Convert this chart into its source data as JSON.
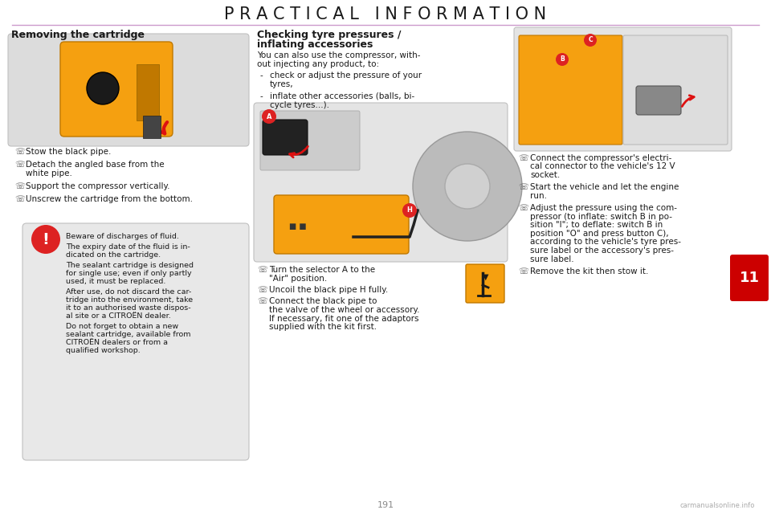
{
  "title": "P R A C T I C A L   I N F O R M A T I O N",
  "title_fontsize": 15,
  "title_color": "#1a1a1a",
  "background_color": "#ffffff",
  "page_number": "11",
  "page_number_color": "#ffffff",
  "page_number_bg": "#cc0000",
  "footer_text": "191",
  "footer_color": "#888888",
  "divider_color": "#cc99cc",
  "left_section_title": "Removing the cartridge",
  "left_bullets": [
    "Stow the black pipe.",
    "Detach the angled base from the\nwhite pipe.",
    "Support the compressor vertically.",
    "Unscrew the cartridge from the bottom."
  ],
  "warning_bg": "#e8e8e8",
  "warning_icon_bg": "#dd2222",
  "warning_texts": [
    "Beware of discharges of fluid.",
    "The expiry date of the fluid is in-\ndicated on the cartridge.",
    "The sealant cartridge is designed\nfor single use; even if only partly\nused, it must be replaced.",
    "After use, do not discard the car-\ntridge into the environment, take\nit to an authorised waste dispos-\nal site or a CITROËN dealer.",
    "Do not forget to obtain a new\nsealant cartridge, available from\nCITROËN dealers or from a\nqualified workshop."
  ],
  "middle_section_title_line1": "Checking tyre pressures /",
  "middle_section_title_line2": "inflating accessories",
  "middle_intro_line1": "You can also use the compressor, with-",
  "middle_intro_line2": "out injecting any product, to:",
  "middle_bullets": [
    "check or adjust the pressure of your\ntyres,",
    "inflate other accessories (balls, bi-\ncycle tyres...)."
  ],
  "middle_steps": [
    "Turn the selector A to the\n\"Air\" position.",
    "Uncoil the black pipe H fully.",
    "Connect the black pipe to\nthe valve of the wheel or accessory.\nIf necessary, fit one of the adaptors\nsupplied with the kit first."
  ],
  "right_bullets": [
    "Connect the compressor's electri-\ncal connector to the vehicle's 12 V\nsocket.",
    "Start the vehicle and let the engine\nrun.",
    "Adjust the pressure using the com-\npressor (to inflate: switch B in po-\nsition \"I\"; to deflate: switch B in\nposition \"O\" and press button C),\naccording to the vehicle's tyre pres-\nsure label or the accessory's pres-\nsure label.",
    "Remove the kit then stow it."
  ],
  "bullet_symbol": "☏"
}
